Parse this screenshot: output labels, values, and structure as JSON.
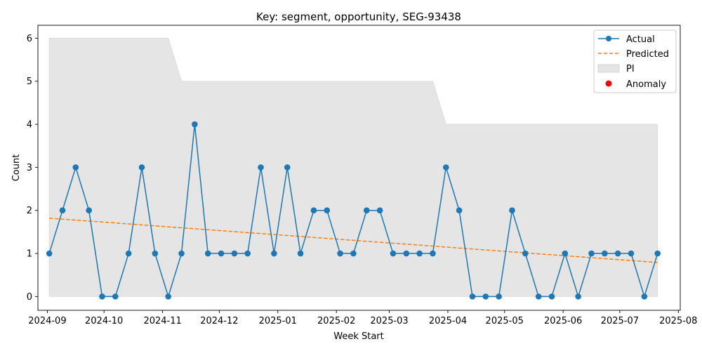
{
  "chart_data": {
    "type": "line",
    "title": "Key: segment, opportunity, SEG-93438",
    "xlabel": "Week Start",
    "ylabel": "Count",
    "ylim": [
      -0.32,
      6.3
    ],
    "xlim": [
      "2024-08-27",
      "2025-08-02"
    ],
    "yticks": [
      "0",
      "1",
      "2",
      "3",
      "4",
      "5",
      "6"
    ],
    "xticks": [
      {
        "date": "2024-09-01",
        "label": "2024-09"
      },
      {
        "date": "2024-10-01",
        "label": "2024-10"
      },
      {
        "date": "2024-11-01",
        "label": "2024-11"
      },
      {
        "date": "2024-12-01",
        "label": "2024-12"
      },
      {
        "date": "2025-01-01",
        "label": "2025-01"
      },
      {
        "date": "2025-02-01",
        "label": "2025-02"
      },
      {
        "date": "2025-03-01",
        "label": "2025-03"
      },
      {
        "date": "2025-04-01",
        "label": "2025-04"
      },
      {
        "date": "2025-05-01",
        "label": "2025-05"
      },
      {
        "date": "2025-06-01",
        "label": "2025-06"
      },
      {
        "date": "2025-07-01",
        "label": "2025-07"
      },
      {
        "date": "2025-08-01",
        "label": "2025-08"
      }
    ],
    "start_date": "2024-09-02",
    "interval_days": 7,
    "series": [
      {
        "name": "Actual",
        "color": "#1f77b4",
        "style": "solid-line-markers",
        "values": [
          1,
          2,
          3,
          2,
          0,
          0,
          1,
          3,
          1,
          0,
          1,
          4,
          1,
          1,
          1,
          1,
          3,
          1,
          3,
          1,
          2,
          2,
          1,
          1,
          2,
          2,
          1,
          1,
          1,
          1,
          3,
          2,
          0,
          0,
          0,
          2,
          1,
          0,
          0,
          1,
          0,
          1,
          1,
          1,
          1,
          0,
          1
        ]
      },
      {
        "name": "Predicted",
        "color": "#ff7f0e",
        "style": "dashed",
        "start": 1.82,
        "end": 0.79
      },
      {
        "name": "PI",
        "color": "#e5e5e5",
        "style": "band",
        "lower": 0,
        "upper": [
          6,
          6,
          6,
          6,
          6,
          6,
          6,
          6,
          6,
          6,
          5,
          5,
          5,
          5,
          5,
          5,
          5,
          5,
          5,
          5,
          5,
          5,
          5,
          5,
          5,
          5,
          5,
          5,
          5,
          5,
          4,
          4,
          4,
          4,
          4,
          4,
          4,
          4,
          4,
          4,
          4,
          4,
          4,
          4,
          4,
          4,
          4
        ]
      },
      {
        "name": "Anomaly",
        "color": "#ff0000",
        "style": "scatter",
        "values": []
      }
    ],
    "legend_position": "top-right"
  }
}
